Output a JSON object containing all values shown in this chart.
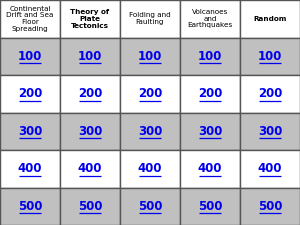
{
  "categories": [
    "Continental\nDrift and Sea\nFloor\nSpreading",
    "Theory of\nPlate\nTectonics",
    "Folding and\nFaulting",
    "Volcanoes\nand\nEarthquakes",
    "Random"
  ],
  "category_bold": [
    false,
    true,
    false,
    false,
    true
  ],
  "point_values": [
    "100",
    "200",
    "300",
    "400",
    "500"
  ],
  "header_bg": "#ffffff",
  "row_colors": [
    "#c0c0c0",
    "#ffffff",
    "#c0c0c0",
    "#ffffff",
    "#c0c0c0"
  ],
  "value_color": "#0000ee",
  "header_text_color": "#000000",
  "grid_color": "#555555",
  "figsize": [
    3.0,
    2.25
  ],
  "dpi": 100,
  "n_cols": 5,
  "n_rows": 5
}
